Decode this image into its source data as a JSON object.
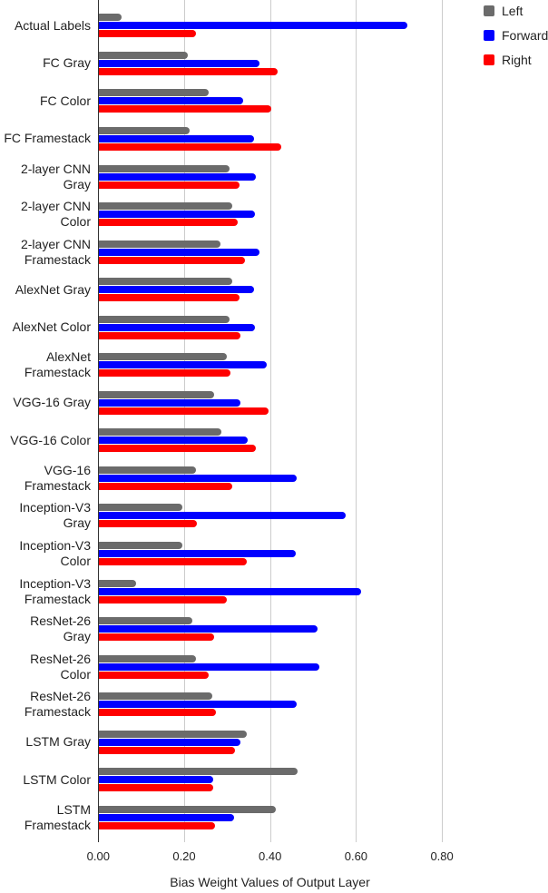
{
  "chart_data": {
    "type": "bar",
    "orientation": "horizontal",
    "title": "",
    "xlabel": "Bias Weight Values of Output Layer",
    "ylabel": "",
    "xlim": [
      0,
      0.8
    ],
    "x_ticks": [
      "0.00",
      "0.20",
      "0.40",
      "0.60",
      "0.80"
    ],
    "grid": true,
    "legend_position": "top-right",
    "categories": [
      "Actual Labels",
      "FC Gray",
      "FC Color",
      "FC Framestack",
      "2-layer CNN Gray",
      "2-layer CNN Color",
      "2-layer CNN Framestack",
      "AlexNet Gray",
      "AlexNet Color",
      "AlexNet Framestack",
      "VGG-16 Gray",
      "VGG-16 Color",
      "VGG-16 Framestack",
      "Inception-V3 Gray",
      "Inception-V3 Color",
      "Inception-V3 Framestack",
      "ResNet-26 Gray",
      "ResNet-26 Color",
      "ResNet-26 Framestack",
      "LSTM Gray",
      "LSTM Color",
      "LSTM Framestack"
    ],
    "category_lines": [
      [
        "Actual Labels"
      ],
      [
        "FC Gray"
      ],
      [
        "FC Color"
      ],
      [
        "FC Framestack"
      ],
      [
        "2-layer CNN",
        "Gray"
      ],
      [
        "2-layer CNN",
        "Color"
      ],
      [
        "2-layer CNN",
        "Framestack"
      ],
      [
        "AlexNet Gray"
      ],
      [
        "AlexNet Color"
      ],
      [
        "AlexNet",
        "Framestack"
      ],
      [
        "VGG-16 Gray"
      ],
      [
        "VGG-16 Color"
      ],
      [
        "VGG-16",
        "Framestack"
      ],
      [
        "Inception-V3",
        "Gray"
      ],
      [
        "Inception-V3",
        "Color"
      ],
      [
        "Inception-V3",
        "Framestack"
      ],
      [
        "ResNet-26",
        "Gray"
      ],
      [
        "ResNet-26",
        "Color"
      ],
      [
        "ResNet-26",
        "Framestack"
      ],
      [
        "LSTM Gray"
      ],
      [
        "LSTM Color"
      ],
      [
        "LSTM",
        "Framestack"
      ]
    ],
    "series": [
      {
        "name": "Left",
        "color": "#6b6b6b",
        "values": [
          0.054,
          0.208,
          0.258,
          0.212,
          0.305,
          0.311,
          0.284,
          0.311,
          0.305,
          0.299,
          0.269,
          0.286,
          0.227,
          0.195,
          0.195,
          0.089,
          0.22,
          0.227,
          0.265,
          0.345,
          0.463,
          0.413
        ]
      },
      {
        "name": "Forward",
        "color": "#0000ff",
        "values": [
          0.719,
          0.375,
          0.337,
          0.362,
          0.366,
          0.364,
          0.375,
          0.362,
          0.364,
          0.392,
          0.332,
          0.347,
          0.461,
          0.575,
          0.459,
          0.611,
          0.51,
          0.514,
          0.461,
          0.332,
          0.267,
          0.316
        ]
      },
      {
        "name": "Right",
        "color": "#ff0000",
        "values": [
          0.227,
          0.417,
          0.403,
          0.425,
          0.328,
          0.324,
          0.341,
          0.328,
          0.33,
          0.307,
          0.396,
          0.366,
          0.311,
          0.229,
          0.345,
          0.299,
          0.269,
          0.258,
          0.273,
          0.318,
          0.267,
          0.271
        ]
      }
    ]
  },
  "legend": {
    "items": [
      {
        "label": "Left",
        "color": "#6b6b6b"
      },
      {
        "label": "Forward",
        "color": "#0000ff"
      },
      {
        "label": "Right",
        "color": "#ff0000"
      }
    ]
  },
  "axis": {
    "x_title": "Bias Weight Values of Output Layer",
    "ticks": [
      "0.00",
      "0.20",
      "0.40",
      "0.60",
      "0.80"
    ]
  }
}
